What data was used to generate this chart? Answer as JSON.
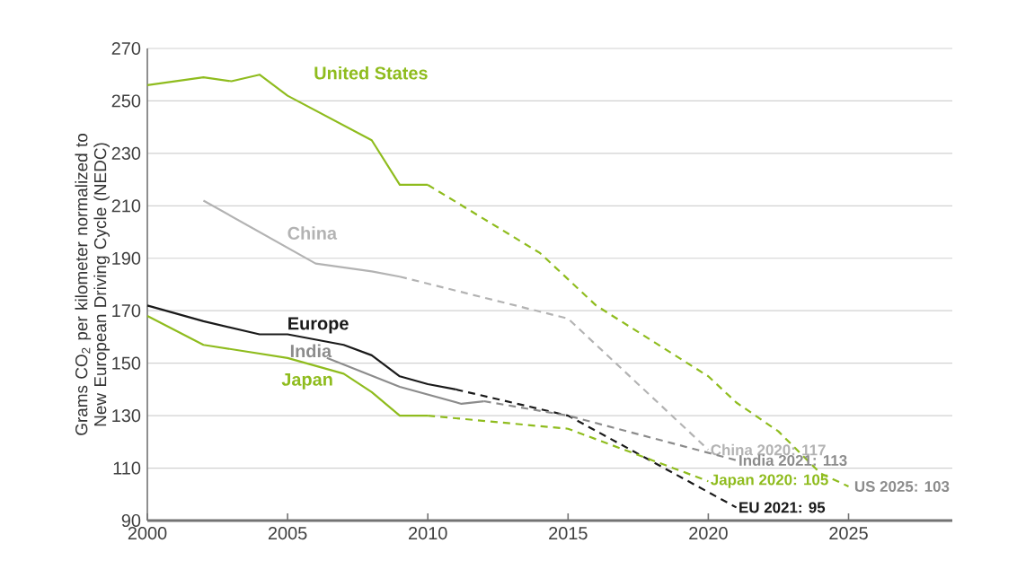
{
  "chart_data": {
    "type": "line",
    "ylabel": "Grams CO$_{2}$ per kilometer normalized to New European Driving Cycle (NEDC)",
    "xlim": [
      2000,
      2028.7
    ],
    "ylim": [
      90,
      270
    ],
    "xticks": [
      2000,
      2005,
      2010,
      2015,
      2020,
      2025
    ],
    "yticks": [
      90,
      110,
      130,
      150,
      170,
      190,
      210,
      230,
      250,
      270
    ],
    "grid": "y",
    "series": [
      {
        "name": "United States",
        "color": "#8fbc1e",
        "x": [
          2000,
          2002,
          2003,
          2004,
          2005,
          2008,
          2009,
          2010
        ],
        "values": [
          256,
          259,
          257.5,
          260,
          252,
          235,
          218,
          218
        ]
      },
      {
        "color": "#8fbc1e",
        "line_style": "dashed",
        "x": [
          2010,
          2014,
          2016,
          2020,
          2021,
          2022.5,
          2024,
          2025
        ],
        "values": [
          218,
          192,
          172,
          145,
          135,
          124,
          108,
          103
        ]
      },
      {
        "name": "China",
        "color": "#b3b3b3",
        "x": [
          2002,
          2006,
          2008,
          2009
        ],
        "values": [
          212,
          188,
          185,
          183
        ]
      },
      {
        "name": "China 2020: 117",
        "color": "#b3b3b3",
        "line_style": "dashed",
        "x": [
          2009,
          2015,
          2020
        ],
        "values": [
          183,
          167,
          117
        ]
      },
      {
        "name": "Europe",
        "color": "#1a1a1a",
        "x": [
          2000,
          2002,
          2004,
          2005,
          2007,
          2008,
          2009,
          2010,
          2011
        ],
        "values": [
          172,
          166,
          161,
          161,
          157,
          153,
          145,
          142,
          140
        ]
      },
      {
        "name": "EU 2021: 95",
        "color": "#1a1a1a",
        "line_style": "dashed",
        "x": [
          2011,
          2015,
          2021
        ],
        "values": [
          140,
          130,
          95
        ]
      },
      {
        "name": "India",
        "color": "#8c8c8c",
        "x": [
          2006.4,
          2009,
          2011.2,
          2012
        ],
        "values": [
          152,
          141,
          134.5,
          135.5
        ]
      },
      {
        "name": "India 2021: 113",
        "color": "#8c8c8c",
        "line_style": "dashed",
        "x": [
          2012,
          2015,
          2021
        ],
        "values": [
          135.5,
          130,
          113
        ]
      },
      {
        "name": "Japan",
        "color": "#8fbc1e",
        "x": [
          2000,
          2002,
          2005,
          2007,
          2008,
          2009,
          2010
        ],
        "values": [
          168,
          157,
          152,
          146,
          139,
          130,
          130
        ]
      },
      {
        "name": "Japan 2020: 105",
        "color": "#8fbc1e",
        "line_style": "dashed",
        "x": [
          2010,
          2015,
          2020
        ],
        "values": [
          130,
          125,
          105
        ]
      }
    ],
    "annotations": [
      {
        "text": "US 2025: 103",
        "x": 2025,
        "y": 103
      }
    ]
  }
}
